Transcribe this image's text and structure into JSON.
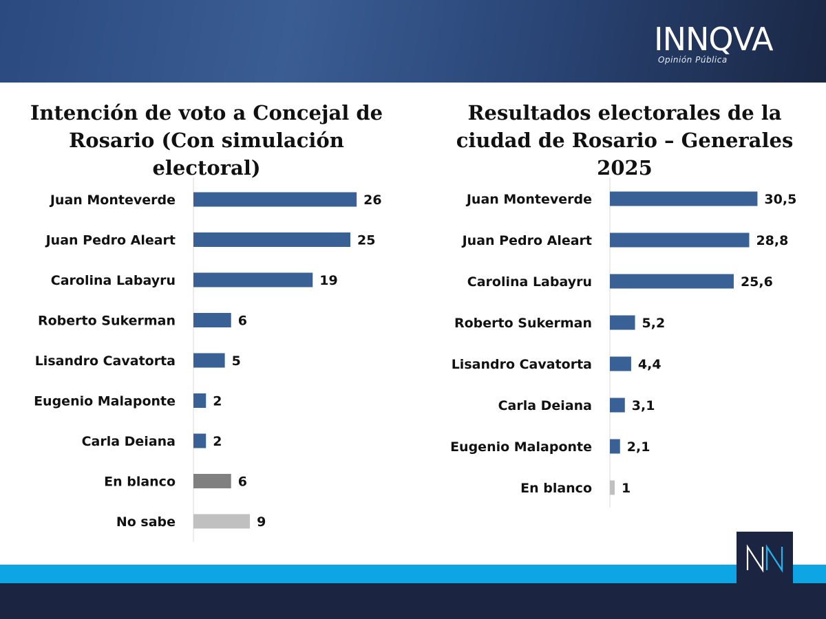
{
  "brand": {
    "name": "INNQVA",
    "tagline": "Opinión Pública",
    "accent": "#1fb6ef",
    "small_mark": "NN"
  },
  "chart_data": [
    {
      "type": "bar",
      "orientation": "horizontal",
      "title": "Intención de voto a Concejal de Rosario (Con simulación electoral)",
      "categories": [
        "Juan Monteverde",
        "Juan Pedro Aleart",
        "Carolina Labayru",
        "Roberto Sukerman",
        "Lisandro Cavatorta",
        "Eugenio Malaponte",
        "Carla Deiana",
        "En blanco",
        "No sabe"
      ],
      "values": [
        26,
        25,
        19,
        6,
        5,
        2,
        2,
        6,
        9
      ],
      "value_labels": [
        "26",
        "25",
        "19",
        "6",
        "5",
        "2",
        "2",
        "6",
        "9"
      ],
      "colors": [
        "#3a6196",
        "#3a6196",
        "#3a6196",
        "#3a6196",
        "#3a6196",
        "#3a6196",
        "#3a6196",
        "#808080",
        "#c0c0c0"
      ],
      "xlim": [
        0,
        30
      ],
      "grid": false,
      "legend": "none"
    },
    {
      "type": "bar",
      "orientation": "horizontal",
      "title": "Resultados electorales de la ciudad de Rosario – Generales 2025",
      "categories": [
        "Juan Monteverde",
        "Juan Pedro Aleart",
        "Carolina Labayru",
        "Roberto Sukerman",
        "Lisandro Cavatorta",
        "Carla Deiana",
        "Eugenio Malaponte",
        "En blanco"
      ],
      "values": [
        30.5,
        28.8,
        25.6,
        5.2,
        4.4,
        3.1,
        2.1,
        1
      ],
      "value_labels": [
        "30,5",
        "28,8",
        "25,6",
        "5,2",
        "4,4",
        "3,1",
        "2,1",
        "1"
      ],
      "colors": [
        "#3a6196",
        "#3a6196",
        "#3a6196",
        "#3a6196",
        "#3a6196",
        "#3a6196",
        "#3a6196",
        "#c0c0c0"
      ],
      "xlim": [
        0,
        35
      ],
      "grid": false,
      "legend": "none"
    }
  ]
}
